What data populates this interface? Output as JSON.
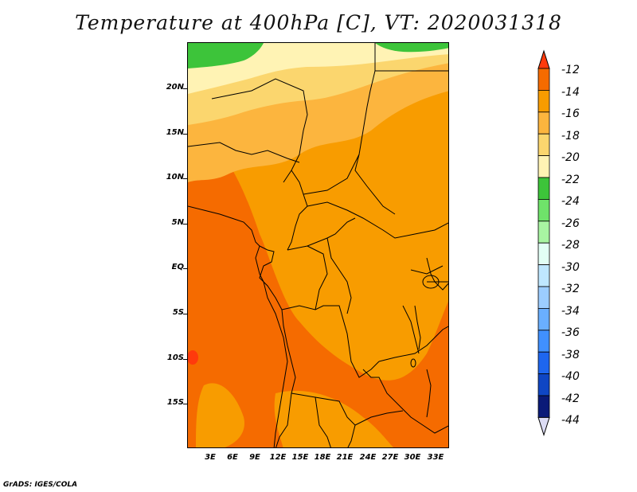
{
  "title": "Temperature at 400hPa [C], VT: 2020031318",
  "credit": "GrADS: IGES/COLA",
  "y_axis_labels": [
    "20N",
    "15N",
    "10N",
    "5N",
    "EQ",
    "5S",
    "10S",
    "15S"
  ],
  "x_axis_labels": [
    "3E",
    "6E",
    "9E",
    "12E",
    "15E",
    "18E",
    "21E",
    "24E",
    "27E",
    "30E",
    "33E"
  ],
  "colorbar": {
    "levels": [
      "-12",
      "-14",
      "-16",
      "-18",
      "-20",
      "-22",
      "-24",
      "-26",
      "-28",
      "-30",
      "-32",
      "-34",
      "-36",
      "-38",
      "-40",
      "-42",
      "-44"
    ],
    "colors": [
      "#ff3a0c",
      "#f56b00",
      "#f89c00",
      "#fcb53e",
      "#fbd66e",
      "#fff3b4",
      "#3dc43a",
      "#6fe36a",
      "#a8f4a2",
      "#e2fff5",
      "#bfe7ff",
      "#9ccdff",
      "#6aafff",
      "#4090ff",
      "#1e66ef",
      "#0f46c4",
      "#0a1a78",
      "#dcdcf4"
    ],
    "colors_note": "top arrow, then bins between levels, then bottom arrow"
  },
  "legend_colors": {
    "deep_orange": "#f56b00",
    "orange": "#f89c00",
    "light_orange": "#fcb53e",
    "yellow": "#fbd66e",
    "pale_yellow": "#fff3b4",
    "green": "#3dc43a",
    "red": "#ff3a0c"
  }
}
